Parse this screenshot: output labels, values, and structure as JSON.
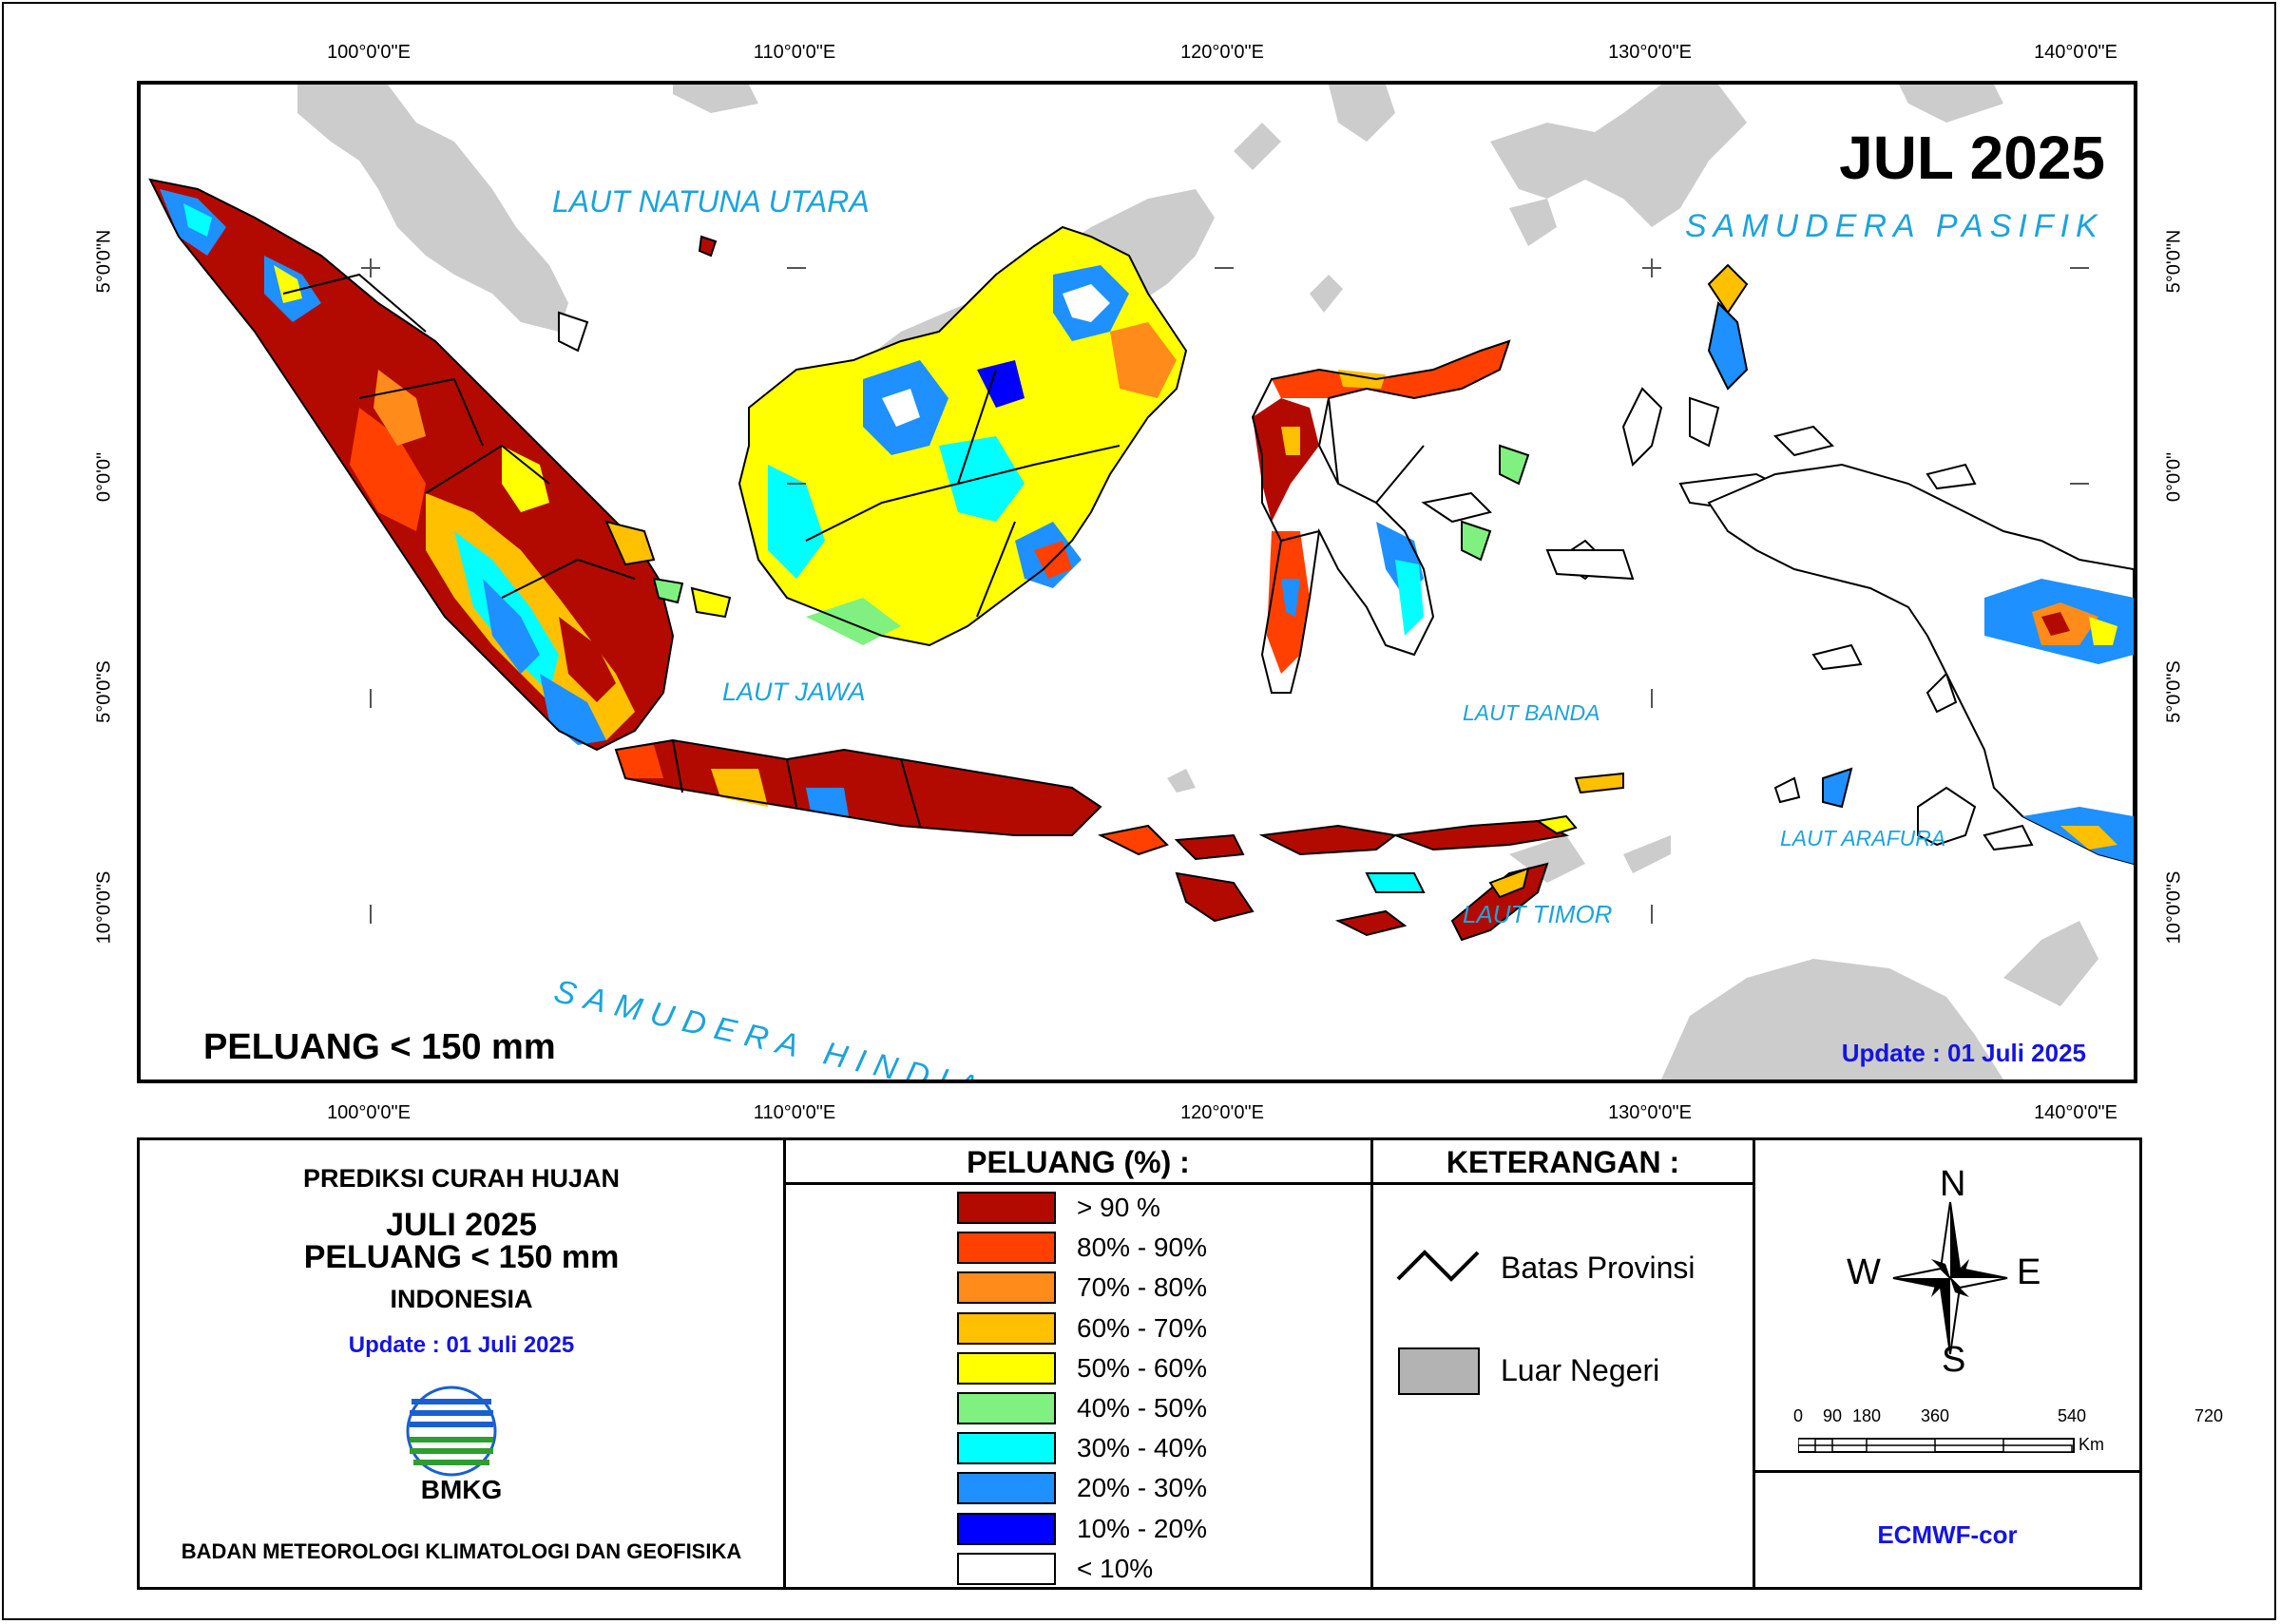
{
  "map": {
    "month_title": "JUL 2025",
    "peluang": "PELUANG < 150 mm",
    "update": "Update : 01 Juli  2025",
    "lon_labels": [
      "100°0'0\"E",
      "110°0'0\"E",
      "120°0'0\"E",
      "130°0'0\"E",
      "140°0'0\"E"
    ],
    "lat_labels": [
      "5°0'0\"N",
      "0°0'0\"",
      "5°0'0\"S",
      "10°0'0\"S"
    ],
    "seas": [
      "LAUT NATUNA UTARA",
      "SAMUDERA PASIFIK",
      "LAUT JAWA",
      "LAUT BANDA",
      "LAUT ARAFURA",
      "LAUT TIMOR",
      "SAMUDERA HINDIA"
    ]
  },
  "info": {
    "title1": "PREDIKSI CURAH HUJAN",
    "title2": "JULI 2025",
    "title3": "PELUANG < 150 mm",
    "region": "INDONESIA",
    "update": "Update : 01 Juli  2025",
    "logo_text": "BMKG",
    "agency": "BADAN METEOROLOGI KLIMATOLOGI DAN GEOFISIKA"
  },
  "legend": {
    "title": "PELUANG (%) :",
    "items": [
      {
        "label": "> 90 %",
        "color": "#b30a00"
      },
      {
        "label": "80% - 90%",
        "color": "#ff4000"
      },
      {
        "label": "70% - 80%",
        "color": "#ff8c1a"
      },
      {
        "label": "60% - 70%",
        "color": "#ffc000"
      },
      {
        "label": "50% - 60%",
        "color": "#ffff00"
      },
      {
        "label": "40% - 50%",
        "color": "#80f080"
      },
      {
        "label": "30% - 40%",
        "color": "#00ffff"
      },
      {
        "label": "20% - 30%",
        "color": "#1e90ff"
      },
      {
        "label": "10% - 20%",
        "color": "#0000ff"
      },
      {
        "label": "< 10%",
        "color": "#ffffff"
      }
    ]
  },
  "keterangan": {
    "title": "KETERANGAN :",
    "provinsi": "Batas Provinsi",
    "luar": "Luar Negeri",
    "luar_color": "#b3b3b3"
  },
  "compass": {
    "n": "N",
    "s": "S",
    "e": "E",
    "w": "W"
  },
  "scalebar": {
    "ticks": [
      "0",
      "90",
      "180",
      "360",
      "540",
      "720"
    ],
    "unit": "Km"
  },
  "model": "ECMWF-cor",
  "colors": {
    "sea_label": "#1ca3dc",
    "update": "#1414e0",
    "foreign_land": "#cccccc"
  }
}
